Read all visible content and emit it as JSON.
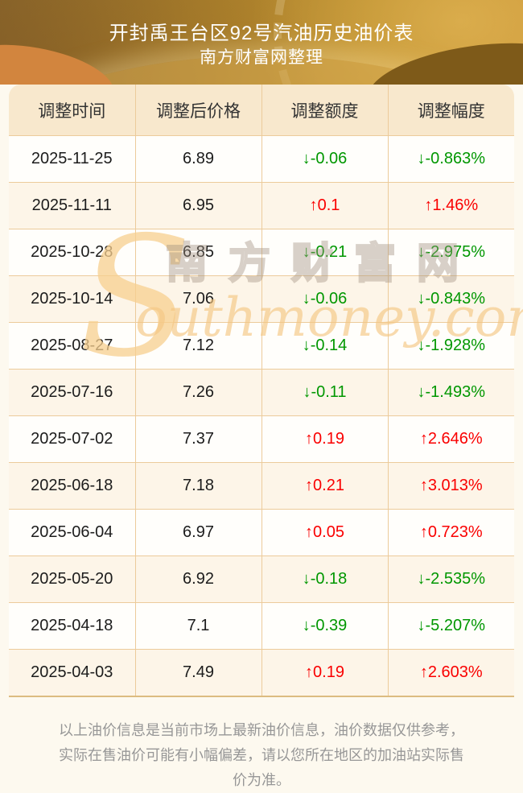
{
  "header": {
    "title": "开封禹王台区92号汽油历史油价表",
    "subtitle": "南方财富网整理"
  },
  "table": {
    "columns": [
      "调整时间",
      "调整后价格",
      "调整额度",
      "调整幅度"
    ],
    "rows": [
      {
        "date": "2025-11-25",
        "price": "6.89",
        "change": "↓-0.06",
        "pct": "↓-0.863%"
      },
      {
        "date": "2025-11-11",
        "price": "6.95",
        "change": "↑0.1",
        "pct": "↑1.46%"
      },
      {
        "date": "2025-10-28",
        "price": "6.85",
        "change": "↓-0.21",
        "pct": "↓-2.975%"
      },
      {
        "date": "2025-10-14",
        "price": "7.06",
        "change": "↓-0.06",
        "pct": "↓-0.843%"
      },
      {
        "date": "2025-08-27",
        "price": "7.12",
        "change": "↓-0.14",
        "pct": "↓-1.928%"
      },
      {
        "date": "2025-07-16",
        "price": "7.26",
        "change": "↓-0.11",
        "pct": "↓-1.493%"
      },
      {
        "date": "2025-07-02",
        "price": "7.37",
        "change": "↑0.19",
        "pct": "↑2.646%"
      },
      {
        "date": "2025-06-18",
        "price": "7.18",
        "change": "↑0.21",
        "pct": "↑3.013%"
      },
      {
        "date": "2025-06-04",
        "price": "6.97",
        "change": "↑0.05",
        "pct": "↑0.723%"
      },
      {
        "date": "2025-05-20",
        "price": "6.92",
        "change": "↓-0.18",
        "pct": "↓-2.535%"
      },
      {
        "date": "2025-04-18",
        "price": "7.1",
        "change": "↓-0.39",
        "pct": "↓-5.207%"
      },
      {
        "date": "2025-04-03",
        "price": "7.49",
        "change": "↑0.19",
        "pct": "↑2.603%"
      }
    ]
  },
  "watermark": {
    "initial": "S",
    "cjk": "南方财富网",
    "latin": "outhmoney.com"
  },
  "footer": {
    "disclaimer": "以上油价信息是当前市场上最新油价信息，油价数据仅供参考，实际在售油价可能有小幅偏差，请以您所在地区的加油站实际售价为准。"
  },
  "colors": {
    "up": "#fa0000",
    "down": "#009700",
    "header_bg": "#f8e8cd",
    "row_alt_bg": "#fdf5e8",
    "border": "#eccb9b",
    "hero_gold": "#bd8e2d",
    "page_bg": "#fdf9ef"
  }
}
